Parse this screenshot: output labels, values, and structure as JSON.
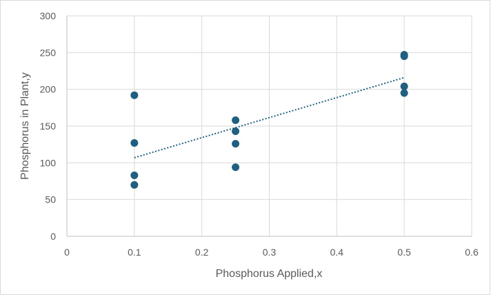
{
  "chart_data": {
    "type": "scatter",
    "title": "",
    "xlabel": "Phosphorus Applied,x",
    "ylabel": "Phosphorus in Plant,y",
    "xlim": [
      0,
      0.6
    ],
    "ylim": [
      0,
      300
    ],
    "xticks": [
      0,
      0.1,
      0.2,
      0.3,
      0.4,
      0.5,
      0.6
    ],
    "yticks": [
      0,
      50,
      100,
      150,
      200,
      250,
      300
    ],
    "grid": true,
    "legend": "none",
    "series": [
      {
        "color": "#1f5f7f",
        "points": [
          [
            0.1,
            192
          ],
          [
            0.1,
            127
          ],
          [
            0.1,
            83
          ],
          [
            0.1,
            70
          ],
          [
            0.25,
            158
          ],
          [
            0.25,
            143
          ],
          [
            0.25,
            126
          ],
          [
            0.25,
            94
          ],
          [
            0.5,
            247
          ],
          [
            0.5,
            245
          ],
          [
            0.5,
            204
          ],
          [
            0.5,
            195
          ]
        ]
      }
    ],
    "trendline": {
      "type": "linear",
      "style": "dotted",
      "color": "#1f5f7f",
      "from": [
        0.1,
        107
      ],
      "to": [
        0.5,
        216
      ]
    }
  }
}
